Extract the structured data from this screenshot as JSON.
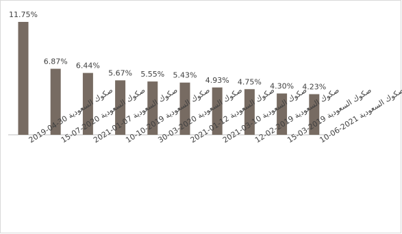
{
  "chart_data": {
    "type": "bar",
    "title": "",
    "xlabel": "",
    "ylabel": "",
    "ylim": [
      0,
      12
    ],
    "grid": false,
    "legend": "none",
    "bar_color": "#776b62",
    "categories": [
      "صكوك السعودية 30-04-2019",
      "صكوك السعودية 2020-07-15",
      "صكوك السعودية 07-01-2021",
      "صكوك السعودية 2019-10-10",
      "صكوك السعودية 2020-03-30",
      "صكوك السعودية 12-01-2021",
      "صكوك السعودية 10-03-2021",
      "صكوك السعودية 2019-02-12",
      "صكوك السعودية 2019-03-15",
      "صكوك السعودية 2021-06-10"
    ],
    "values": [
      11.75,
      6.87,
      6.44,
      5.67,
      5.55,
      5.43,
      4.93,
      4.75,
      4.3,
      4.23
    ],
    "data_labels": [
      "11.75%",
      "6.87%",
      "6.44%",
      "5.67%",
      "5.55%",
      "5.43%",
      "4.93%",
      "4.75%",
      "4.30%",
      "4.23%"
    ]
  }
}
